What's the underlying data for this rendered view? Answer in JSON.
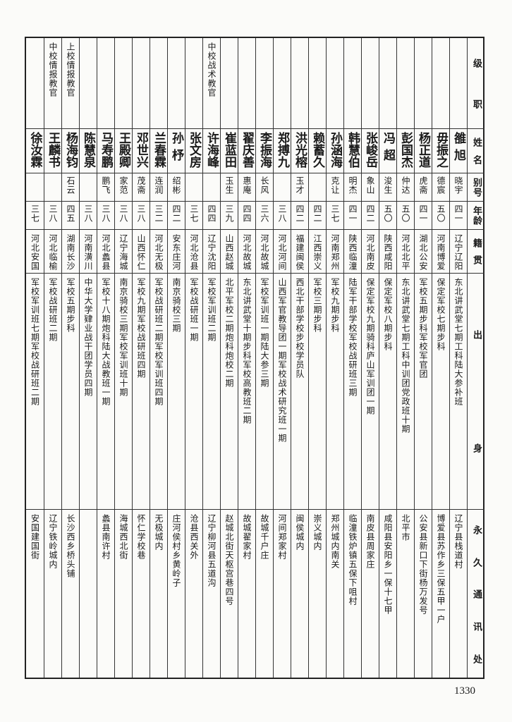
{
  "header": {
    "rank": [
      "级",
      "职"
    ],
    "name": [
      "姓",
      "名"
    ],
    "alias": [
      "别",
      "号"
    ],
    "age": [
      "年",
      "龄"
    ],
    "origin": [
      "籍",
      "贯"
    ],
    "education": [
      "出",
      "身"
    ],
    "address": [
      "永",
      "久",
      "通",
      "讯",
      "处"
    ]
  },
  "people": [
    {
      "rank": "",
      "name": "雒旭",
      "alias": "晓宇",
      "age": "四一",
      "origin": "辽宁辽阳",
      "education": "东北讲武堂七期工科陆大参补班",
      "address": "辽宁县栈道村"
    },
    {
      "rank": "",
      "name": "毋振之",
      "alias": "德宸",
      "age": "五〇",
      "origin": "河南博爱",
      "education": "保定军校七期步科",
      "address": "博爱县苏作乡三保五甲一户"
    },
    {
      "rank": "",
      "name": "杨正道",
      "alias": "虎斋",
      "age": "四一",
      "origin": "湖北公安",
      "education": "军校五期步科军校军官团",
      "address": "公安县新口下街杨万发号"
    },
    {
      "rank": "",
      "name": "彭国杰",
      "alias": "仲达",
      "age": "五〇",
      "origin": "河北北平",
      "education": "东北讲武堂七期工科中训团党政班十期",
      "address": "北平市"
    },
    {
      "rank": "",
      "name": "冯超",
      "alias": "浚生",
      "age": "五〇",
      "origin": "陕西咸阳",
      "education": "保定军校八期步科",
      "address": "咸阳县安阳乡一保十七甲"
    },
    {
      "rank": "",
      "name": "张峻岳",
      "alias": "象山",
      "age": "四二",
      "origin": "河北南皮",
      "education": "保定军校九期骑科庐山军训团一期",
      "address": "南皮县周家庄"
    },
    {
      "rank": "",
      "name": "韩慧伯",
      "alias": "明杰",
      "age": "四一",
      "origin": "陕西临潼",
      "education": "陆军干部学校军校战研班三期",
      "address": "临潼铁炉镇五保下咀村"
    },
    {
      "rank": "",
      "name": "孙涵海",
      "alias": "克让",
      "age": "三七",
      "origin": "河南郑州",
      "education": "军校九期步科",
      "address": "郑州城内南关"
    },
    {
      "rank": "",
      "name": "赖蓄久",
      "alias": "",
      "age": "四二",
      "origin": "江西崇义",
      "education": "军校三期步科",
      "address": "崇义城内"
    },
    {
      "rank": "",
      "name": "洪光榕",
      "alias": "玉才",
      "age": "四二",
      "origin": "福建闽侯",
      "education": "西北干部学校步校学员队",
      "address": "闽侯城内"
    },
    {
      "rank": "",
      "name": "郑搏九",
      "alias": "",
      "age": "三八",
      "origin": "河北河间",
      "education": "山西军官教导团一期军校战术研究班一期",
      "address": "河间郑家村"
    },
    {
      "rank": "",
      "name": "李振海",
      "alias": "长风",
      "age": "三六",
      "origin": "河北故城",
      "education": "军校军训班一期陆大参三期",
      "address": "故城千户庄"
    },
    {
      "rank": "",
      "name": "翟庆善",
      "alias": "惠庵",
      "age": "四四",
      "origin": "河北故城",
      "education": "东北讲武堂十期步科军校高教班二期",
      "address": "故城翟家村"
    },
    {
      "rank": "",
      "name": "崔蓝田",
      "alias": "玉生",
      "age": "三九",
      "origin": "山西赵城",
      "education": "北平军校二期炮科炮校二期",
      "address": "赵城北街天枢宫巷四号"
    },
    {
      "rank": "中校战术教官",
      "name": "许海峰",
      "alias": "",
      "age": "四四",
      "origin": "辽宁沈阳",
      "education": "军校军训班二期",
      "address": "辽宁柳河县五道沟"
    },
    {
      "rank": "",
      "name": "张文房",
      "alias": "",
      "age": "三七",
      "origin": "河北沧县",
      "education": "军校战研班一期",
      "address": "沧县西关外"
    },
    {
      "rank": "",
      "name": "孙杼",
      "alias": "绍彬",
      "age": "四二",
      "origin": "安东庄河",
      "education": "南京骑校三期",
      "address": "庄河侯村乡黄岭子"
    },
    {
      "rank": "",
      "name": "兰春霖",
      "alias": "连润",
      "age": "三二",
      "origin": "河北无极",
      "education": "军校战研班二期军校军训班四期",
      "address": "无极城内"
    },
    {
      "rank": "",
      "name": "邓世兴",
      "alias": "茂斋",
      "age": "三八",
      "origin": "山西怀仁",
      "education": "军校九期军校战研班四期",
      "address": "怀仁学校巷"
    },
    {
      "rank": "",
      "name": "王殿卿",
      "alias": "家范",
      "age": "三八",
      "origin": "辽宁海城",
      "education": "南京骑校三期军校军训班十期",
      "address": "海城西北街"
    },
    {
      "rank": "",
      "name": "马寿鹏",
      "alias": "鹏飞",
      "age": "三八",
      "origin": "河北蠡县",
      "education": "军校十八期炮科陆大战教班一期",
      "address": "蠡县南许村"
    },
    {
      "rank": "",
      "name": "陈慧泉",
      "alias": "",
      "age": "三八",
      "origin": "河南潢川",
      "education": "中华大学肄业战干团学员四期",
      "address": ""
    },
    {
      "rank": "上校情报教官",
      "name": "杨海钧",
      "alias": "石云",
      "age": "四五",
      "origin": "湖南长沙",
      "education": "军校五期步科",
      "address": "长沙西乡桥头铺"
    },
    {
      "rank": "中校情报教官",
      "name": "王麟书",
      "alias": "",
      "age": "三八",
      "origin": "河北临榆",
      "education": "军校战研班二期",
      "address": "辽宁铁岭城内"
    },
    {
      "rank": "",
      "name": "徐汝霖",
      "alias": "",
      "age": "三七",
      "origin": "河北安国",
      "education": "军校军训班七期军校战研班二期",
      "address": "安国建国街"
    }
  ],
  "page_number": "1330"
}
